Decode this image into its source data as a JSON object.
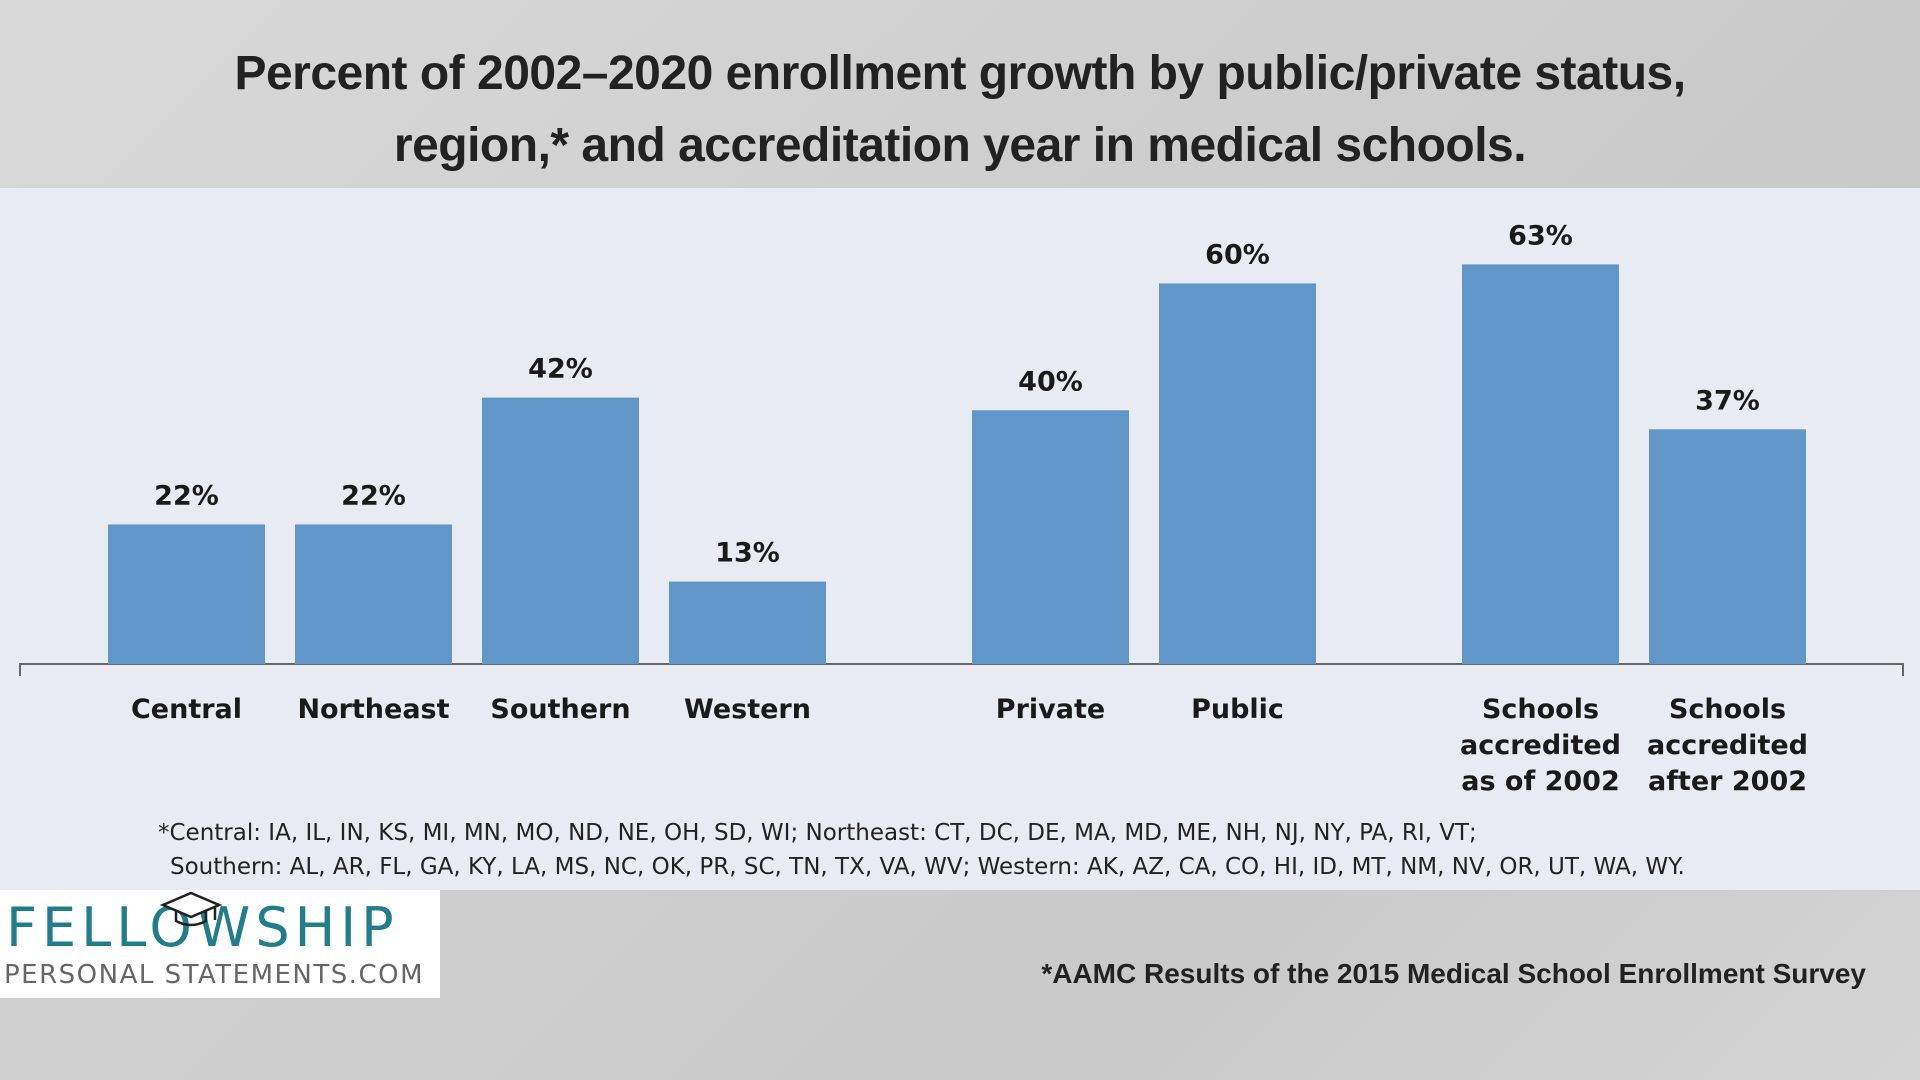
{
  "title": {
    "line1": "Percent of 2002–2020 enrollment growth by public/private status,",
    "line2": "region,* and accreditation year in medical schools."
  },
  "chart_data": {
    "type": "bar",
    "groups": [
      {
        "categories": [
          [
            "Central"
          ],
          [
            "Northeast"
          ],
          [
            "Southern"
          ],
          [
            "Western"
          ]
        ],
        "values": [
          22,
          22,
          42,
          13
        ]
      },
      {
        "categories": [
          [
            "Private"
          ],
          [
            "Public"
          ]
        ],
        "values": [
          40,
          60
        ]
      },
      {
        "categories": [
          [
            "Schools",
            "accredited",
            "as of 2002"
          ],
          [
            "Schools",
            "accredited",
            "after 2002"
          ]
        ],
        "values": [
          63,
          37
        ]
      }
    ],
    "value_suffix": "%",
    "ylim": [
      0,
      70
    ],
    "bar_color": "#6096c8",
    "grid": false,
    "legend": "none"
  },
  "footnote": {
    "line1": "*Central: IA, IL, IN, KS, MI, MN, MO, ND, NE, OH, SD, WI; Northeast: CT, DC, DE, MA, MD, ME, NH, NJ, NY, PA, RI, VT;",
    "line2": "Southern: AL, AR, FL, GA, KY, LA, MS, NC, OK, PR, SC, TN, TX, VA, WV; Western: AK, AZ, CA, CO, HI, ID, MT, NM, NV, OR, UT, WA, WY."
  },
  "logo": {
    "word": "FELLOWSHIP",
    "sub": "PERSONAL STATEMENTS.COM",
    "cap_icon": "graduation-cap-icon",
    "color": "#1f7d8c"
  },
  "source": "*AAMC Results of the 2015 Medical School Enrollment Survey"
}
